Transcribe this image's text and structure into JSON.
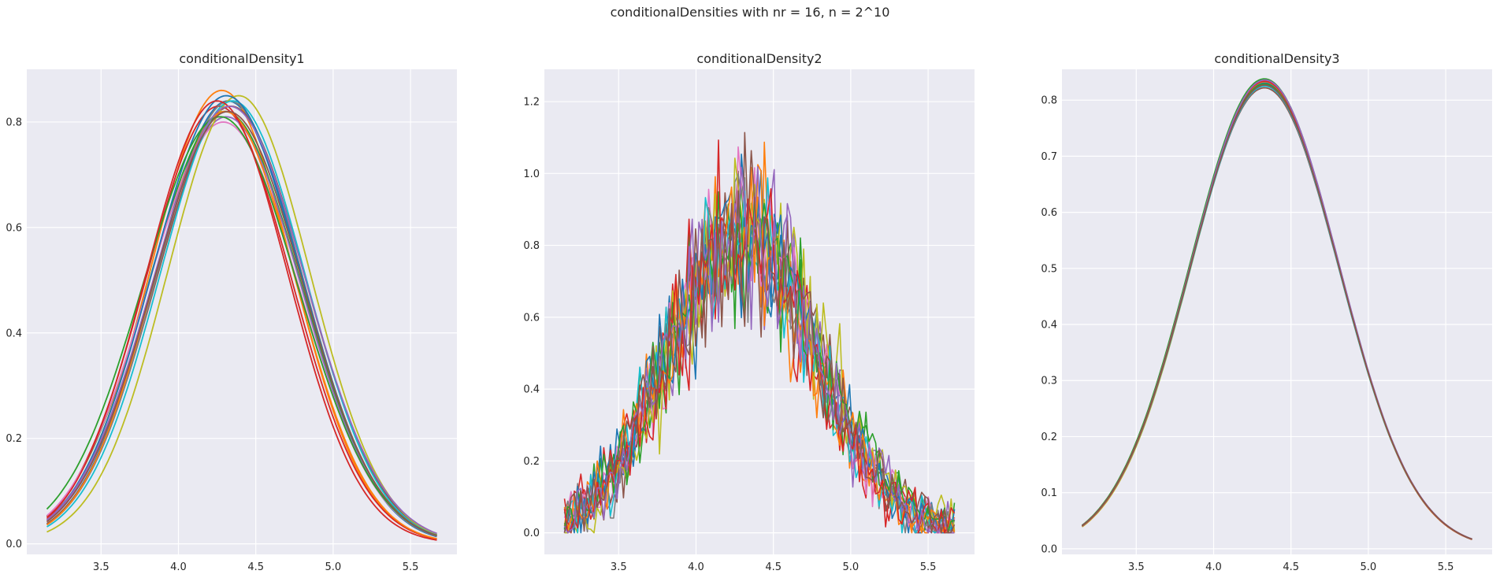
{
  "suptitle": "conditionalDensities with nr = 16, n = 2^10",
  "style": {
    "background": "#eaeaf2",
    "grid": "#ffffff",
    "text": "#262626"
  },
  "colors": [
    "#1f77b4",
    "#ff7f0e",
    "#2ca02c",
    "#d62728",
    "#9467bd",
    "#8c564b",
    "#e377c2",
    "#7f7f7f",
    "#bcbd22",
    "#17becf",
    "#1f77b4",
    "#ff7f0e",
    "#2ca02c",
    "#d62728",
    "#9467bd",
    "#8c564b"
  ],
  "chart_data": [
    {
      "type": "line",
      "title": "conditionalDensity1",
      "xlabel": "",
      "ylabel": "",
      "x_range": [
        3.15,
        5.67
      ],
      "xlim": [
        3.02,
        5.8
      ],
      "ylim": [
        -0.02,
        0.9
      ],
      "xticks": [
        3.5,
        4.0,
        4.5,
        5.0,
        5.5
      ],
      "xtick_labels": [
        "3.5",
        "4.0",
        "4.5",
        "5.0",
        "5.5"
      ],
      "yticks": [
        0.0,
        0.2,
        0.4,
        0.6,
        0.8
      ],
      "ytick_labels": [
        "0.0",
        "0.2",
        "0.4",
        "0.6",
        "0.8"
      ],
      "grid": true,
      "legend": "none",
      "series_shape": "gaussian",
      "series": [
        {
          "mu": 4.32,
          "sigma": 0.47,
          "peak": 0.84
        },
        {
          "mu": 4.28,
          "sigma": 0.46,
          "peak": 0.86
        },
        {
          "mu": 4.3,
          "sigma": 0.49,
          "peak": 0.82
        },
        {
          "mu": 4.26,
          "sigma": 0.47,
          "peak": 0.83
        },
        {
          "mu": 4.31,
          "sigma": 0.48,
          "peak": 0.81
        },
        {
          "mu": 4.34,
          "sigma": 0.48,
          "peak": 0.83
        },
        {
          "mu": 4.29,
          "sigma": 0.49,
          "peak": 0.8
        },
        {
          "mu": 4.33,
          "sigma": 0.47,
          "peak": 0.84
        },
        {
          "mu": 4.39,
          "sigma": 0.46,
          "peak": 0.85
        },
        {
          "mu": 4.35,
          "sigma": 0.47,
          "peak": 0.84
        },
        {
          "mu": 4.31,
          "sigma": 0.48,
          "peak": 0.85
        },
        {
          "mu": 4.3,
          "sigma": 0.46,
          "peak": 0.82
        },
        {
          "mu": 4.27,
          "sigma": 0.5,
          "peak": 0.81
        },
        {
          "mu": 4.25,
          "sigma": 0.46,
          "peak": 0.84
        },
        {
          "mu": 4.33,
          "sigma": 0.49,
          "peak": 0.83
        },
        {
          "mu": 4.32,
          "sigma": 0.48,
          "peak": 0.82
        }
      ]
    },
    {
      "type": "line",
      "title": "conditionalDensity2",
      "xlabel": "",
      "ylabel": "",
      "x_range": [
        3.15,
        5.67
      ],
      "xlim": [
        3.02,
        5.8
      ],
      "ylim": [
        -0.06,
        1.29
      ],
      "xticks": [
        3.5,
        4.0,
        4.5,
        5.0,
        5.5
      ],
      "xtick_labels": [
        "3.5",
        "4.0",
        "4.5",
        "5.0",
        "5.5"
      ],
      "yticks": [
        0.0,
        0.2,
        0.4,
        0.6,
        0.8,
        1.0,
        1.2
      ],
      "ytick_labels": [
        "0.0",
        "0.2",
        "0.4",
        "0.6",
        "0.8",
        "1.0",
        "1.2"
      ],
      "grid": true,
      "legend": "none",
      "series_shape": "noisy-gaussian",
      "points_per_series": 120,
      "noise": 0.09,
      "series": [
        {
          "mu": 4.3,
          "sigma": 0.47,
          "peak": 0.84,
          "seed": 11
        },
        {
          "mu": 4.28,
          "sigma": 0.46,
          "peak": 0.85,
          "seed": 23
        },
        {
          "mu": 4.31,
          "sigma": 0.49,
          "peak": 0.83,
          "seed": 37
        },
        {
          "mu": 4.27,
          "sigma": 0.47,
          "peak": 0.84,
          "seed": 41
        },
        {
          "mu": 4.32,
          "sigma": 0.48,
          "peak": 0.82,
          "seed": 53
        },
        {
          "mu": 4.33,
          "sigma": 0.48,
          "peak": 0.83,
          "seed": 67
        },
        {
          "mu": 4.3,
          "sigma": 0.48,
          "peak": 0.84,
          "seed": 71
        },
        {
          "mu": 4.31,
          "sigma": 0.47,
          "peak": 0.83,
          "seed": 83
        },
        {
          "mu": 4.35,
          "sigma": 0.47,
          "peak": 0.84,
          "seed": 97
        },
        {
          "mu": 4.29,
          "sigma": 0.47,
          "peak": 0.83,
          "seed": 101
        },
        {
          "mu": 4.3,
          "sigma": 0.48,
          "peak": 0.85,
          "seed": 113
        },
        {
          "mu": 4.28,
          "sigma": 0.47,
          "peak": 0.83,
          "seed": 127
        },
        {
          "mu": 4.32,
          "sigma": 0.49,
          "peak": 0.82,
          "seed": 131
        },
        {
          "mu": 4.3,
          "sigma": 0.46,
          "peak": 0.84,
          "seed": 149
        },
        {
          "mu": 4.31,
          "sigma": 0.48,
          "peak": 0.83,
          "seed": 157
        },
        {
          "mu": 4.29,
          "sigma": 0.48,
          "peak": 0.84,
          "seed": 163
        }
      ]
    },
    {
      "type": "line",
      "title": "conditionalDensity3",
      "xlabel": "",
      "ylabel": "",
      "x_range": [
        3.15,
        5.67
      ],
      "xlim": [
        3.02,
        5.8
      ],
      "ylim": [
        -0.01,
        0.855
      ],
      "xticks": [
        3.5,
        4.0,
        4.5,
        5.0,
        5.5
      ],
      "xtick_labels": [
        "3.5",
        "4.0",
        "4.5",
        "5.0",
        "5.5"
      ],
      "yticks": [
        0.0,
        0.1,
        0.2,
        0.3,
        0.4,
        0.5,
        0.6,
        0.7,
        0.8
      ],
      "ytick_labels": [
        "0.0",
        "0.1",
        "0.2",
        "0.3",
        "0.4",
        "0.5",
        "0.6",
        "0.7",
        "0.8"
      ],
      "grid": true,
      "legend": "none",
      "series_shape": "gaussian",
      "series": [
        {
          "mu": 4.33,
          "sigma": 0.48,
          "peak": 0.83
        },
        {
          "mu": 4.332,
          "sigma": 0.478,
          "peak": 0.835
        },
        {
          "mu": 4.328,
          "sigma": 0.481,
          "peak": 0.838
        },
        {
          "mu": 4.331,
          "sigma": 0.48,
          "peak": 0.828
        },
        {
          "mu": 4.33,
          "sigma": 0.482,
          "peak": 0.826
        },
        {
          "mu": 4.329,
          "sigma": 0.482,
          "peak": 0.822
        },
        {
          "mu": 4.331,
          "sigma": 0.479,
          "peak": 0.832
        },
        {
          "mu": 4.33,
          "sigma": 0.481,
          "peak": 0.827
        },
        {
          "mu": 4.333,
          "sigma": 0.479,
          "peak": 0.83
        },
        {
          "mu": 4.33,
          "sigma": 0.48,
          "peak": 0.825
        },
        {
          "mu": 4.331,
          "sigma": 0.48,
          "peak": 0.831
        },
        {
          "mu": 4.33,
          "sigma": 0.479,
          "peak": 0.833
        },
        {
          "mu": 4.329,
          "sigma": 0.481,
          "peak": 0.829
        },
        {
          "mu": 4.33,
          "sigma": 0.48,
          "peak": 0.834
        },
        {
          "mu": 4.331,
          "sigma": 0.48,
          "peak": 0.836
        },
        {
          "mu": 4.33,
          "sigma": 0.481,
          "peak": 0.827
        }
      ]
    }
  ]
}
